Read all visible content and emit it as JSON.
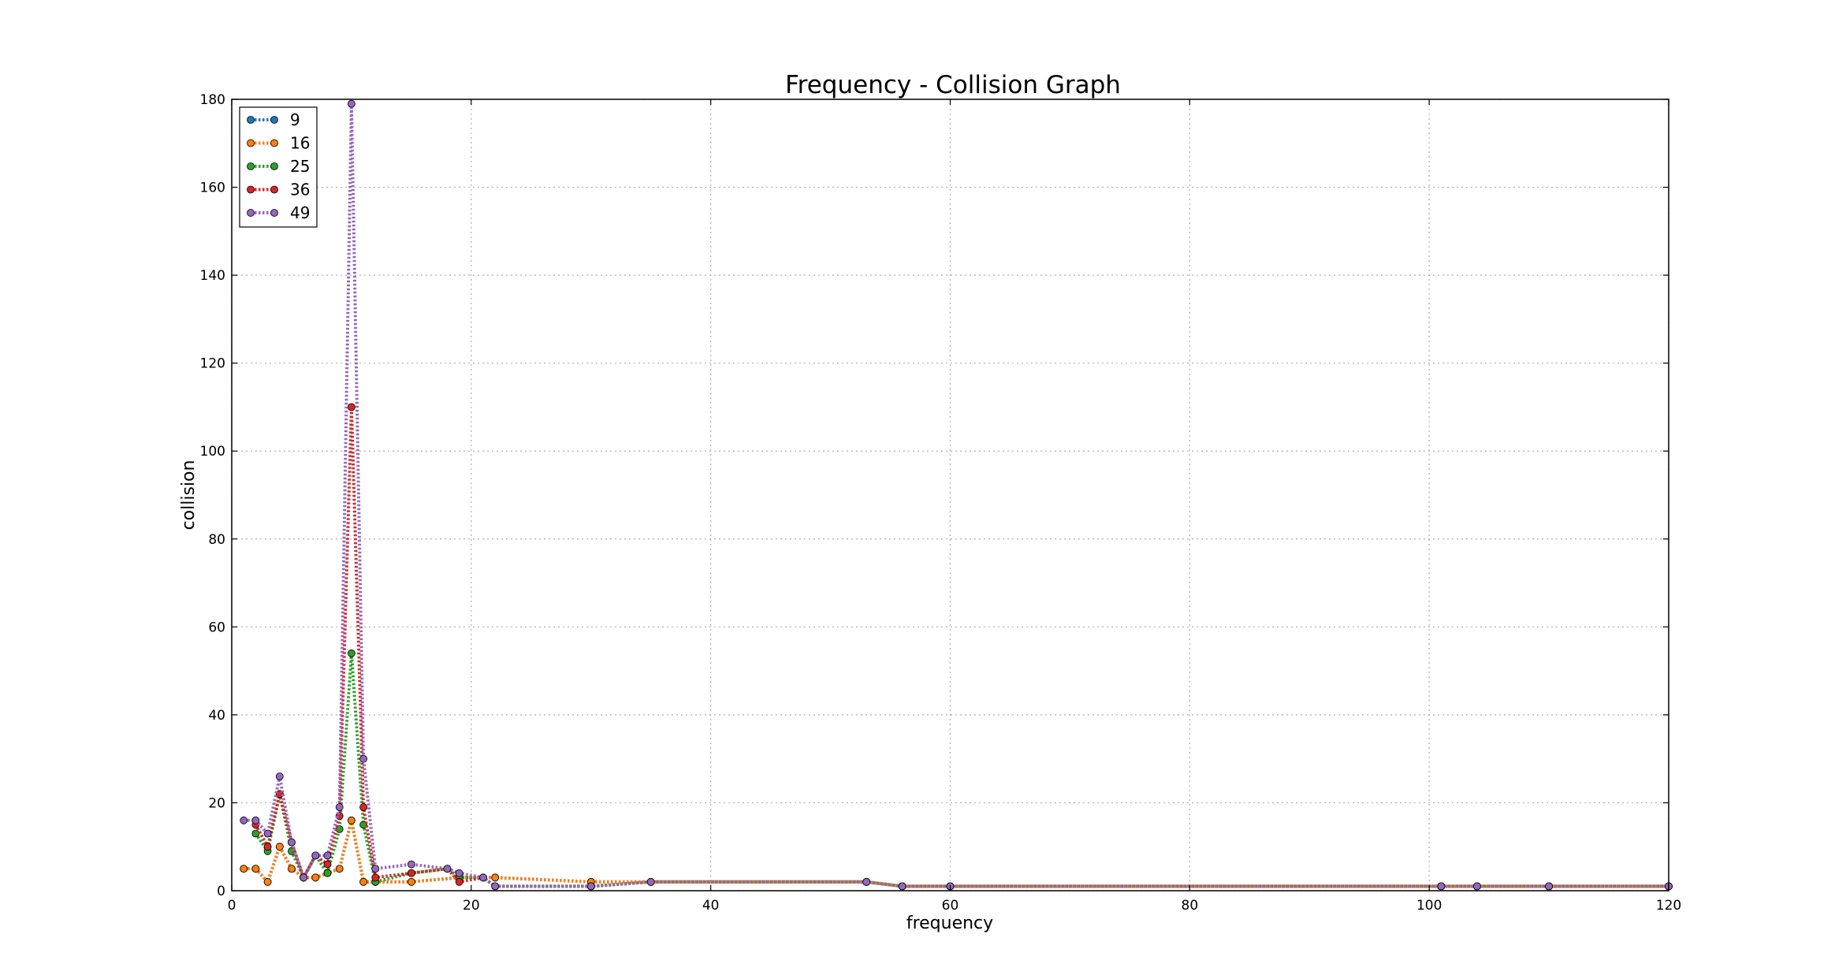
{
  "chart_data": {
    "type": "line",
    "title": "Frequency - Collision Graph",
    "xlabel": "frequency",
    "ylabel": "collision",
    "xlim": [
      0,
      120
    ],
    "ylim": [
      0,
      180
    ],
    "xticks": [
      0,
      20,
      40,
      60,
      80,
      100,
      120
    ],
    "yticks": [
      0,
      20,
      40,
      60,
      80,
      100,
      120,
      140,
      160,
      180
    ],
    "grid": true,
    "legend_position": "top-left",
    "line_style": "dotted",
    "series": [
      {
        "name": "9",
        "color": "#1f77b4",
        "points": [
          [
            1,
            5
          ],
          [
            2,
            5
          ],
          [
            3,
            2
          ],
          [
            4,
            10
          ],
          [
            5,
            5
          ],
          [
            6,
            3
          ],
          [
            7,
            3
          ],
          [
            8,
            4
          ],
          [
            9,
            5
          ],
          [
            10,
            16
          ],
          [
            11,
            2
          ],
          [
            12,
            2
          ],
          [
            15,
            2
          ],
          [
            19,
            3
          ],
          [
            22,
            3
          ],
          [
            30,
            2
          ],
          [
            35,
            2
          ],
          [
            53,
            2
          ],
          [
            56,
            1
          ],
          [
            60,
            1
          ],
          [
            101,
            1
          ],
          [
            104,
            1
          ],
          [
            110,
            1
          ],
          [
            120,
            1
          ]
        ]
      },
      {
        "name": "16",
        "color": "#ff7f0e",
        "points": [
          [
            1,
            5
          ],
          [
            2,
            5
          ],
          [
            3,
            2
          ],
          [
            4,
            10
          ],
          [
            5,
            5
          ],
          [
            6,
            3
          ],
          [
            7,
            3
          ],
          [
            8,
            4
          ],
          [
            9,
            5
          ],
          [
            10,
            16
          ],
          [
            11,
            2
          ],
          [
            12,
            2
          ],
          [
            15,
            2
          ],
          [
            19,
            3
          ],
          [
            22,
            3
          ],
          [
            30,
            2
          ],
          [
            35,
            2
          ],
          [
            53,
            2
          ],
          [
            56,
            1
          ],
          [
            60,
            1
          ],
          [
            101,
            1
          ],
          [
            104,
            1
          ],
          [
            110,
            1
          ],
          [
            120,
            1
          ]
        ]
      },
      {
        "name": "25",
        "color": "#2ca02c",
        "points": [
          [
            2,
            13
          ],
          [
            3,
            9
          ],
          [
            4,
            22
          ],
          [
            5,
            9
          ],
          [
            6,
            3
          ],
          [
            7,
            8
          ],
          [
            8,
            4
          ],
          [
            9,
            14
          ],
          [
            10,
            54
          ],
          [
            11,
            15
          ],
          [
            12,
            2
          ],
          [
            15,
            4
          ],
          [
            18,
            5
          ],
          [
            19,
            3
          ],
          [
            21,
            3
          ],
          [
            22,
            1
          ],
          [
            30,
            1
          ],
          [
            35,
            2
          ],
          [
            53,
            2
          ],
          [
            56,
            1
          ],
          [
            60,
            1
          ],
          [
            101,
            1
          ],
          [
            104,
            1
          ],
          [
            110,
            1
          ],
          [
            120,
            1
          ]
        ]
      },
      {
        "name": "36",
        "color": "#d62728",
        "points": [
          [
            2,
            15
          ],
          [
            3,
            10
          ],
          [
            4,
            22
          ],
          [
            5,
            11
          ],
          [
            6,
            3
          ],
          [
            7,
            8
          ],
          [
            8,
            6
          ],
          [
            9,
            17
          ],
          [
            10,
            110
          ],
          [
            11,
            19
          ],
          [
            12,
            3
          ],
          [
            15,
            4
          ],
          [
            18,
            5
          ],
          [
            19,
            2
          ],
          [
            21,
            3
          ],
          [
            22,
            1
          ],
          [
            30,
            1
          ],
          [
            35,
            2
          ],
          [
            53,
            2
          ],
          [
            56,
            1
          ],
          [
            60,
            1
          ],
          [
            101,
            1
          ],
          [
            104,
            1
          ],
          [
            110,
            1
          ],
          [
            120,
            1
          ]
        ]
      },
      {
        "name": "49",
        "color": "#9467bd",
        "points": [
          [
            1,
            16
          ],
          [
            2,
            16
          ],
          [
            3,
            13
          ],
          [
            4,
            26
          ],
          [
            5,
            11
          ],
          [
            6,
            3
          ],
          [
            7,
            8
          ],
          [
            8,
            8
          ],
          [
            9,
            19
          ],
          [
            10,
            179
          ],
          [
            11,
            30
          ],
          [
            12,
            5
          ],
          [
            15,
            6
          ],
          [
            18,
            5
          ],
          [
            19,
            4
          ],
          [
            21,
            3
          ],
          [
            22,
            1
          ],
          [
            30,
            1
          ],
          [
            35,
            2
          ],
          [
            53,
            2
          ],
          [
            56,
            1
          ],
          [
            60,
            1
          ],
          [
            101,
            1
          ],
          [
            104,
            1
          ],
          [
            110,
            1
          ],
          [
            120,
            1
          ]
        ]
      }
    ]
  }
}
